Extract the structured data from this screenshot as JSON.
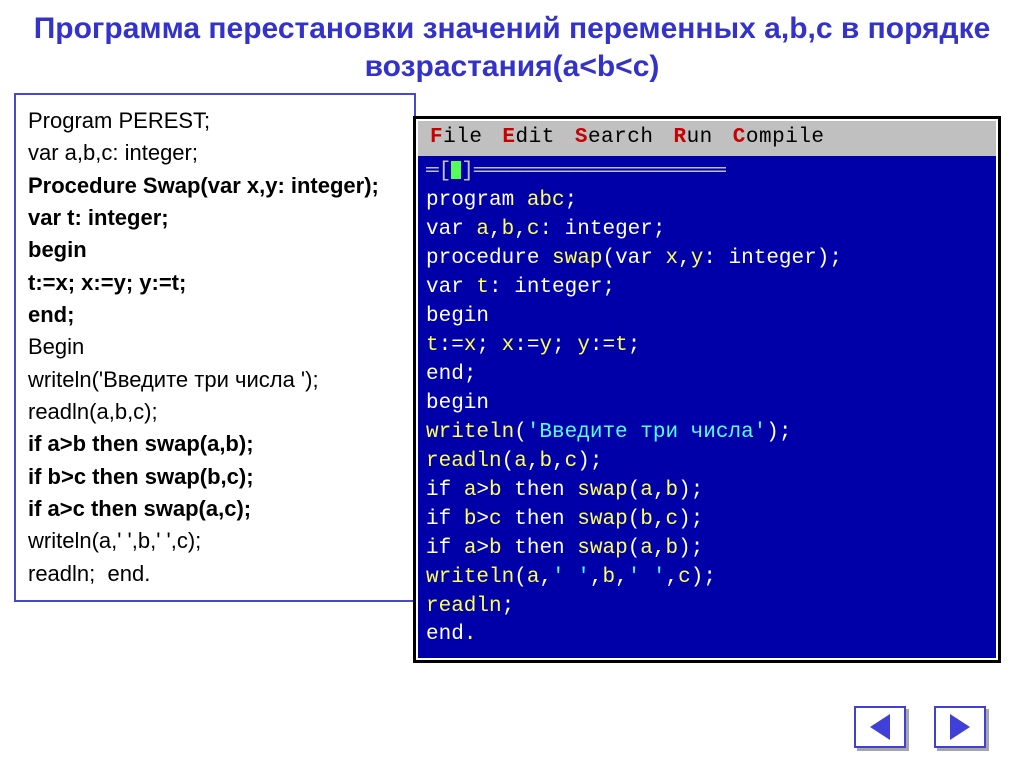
{
  "title": "Программа перестановки значений переменных a,b,c в порядке возрастания(a<b<c)",
  "code_left": [
    {
      "t": "Program PEREST;",
      "b": false
    },
    {
      "t": "var a,b,c: integer;",
      "b": false
    },
    {
      "t": "Procedure Swap(var x,y: integer);",
      "b": true
    },
    {
      "t": "var t: integer;",
      "b": true
    },
    {
      "t": "begin",
      "b": true
    },
    {
      "t": "t:=x; x:=y; y:=t;",
      "b": true
    },
    {
      "t": "end;",
      "b": true
    },
    {
      "t": "Begin",
      "b": false
    },
    {
      "t": "writeln('Введите три числа ');",
      "b": false
    },
    {
      "t": "readln(a,b,c);",
      "b": false
    },
    {
      "t": "if a>b then swap(a,b);",
      "b": true
    },
    {
      "t": "if b>c then swap(b,c);",
      "b": true
    },
    {
      "t": "if a>c then swap(a,c);",
      "b": true
    },
    {
      "t": "writeln(a,' ',b,' ',c);",
      "b": false
    },
    {
      "t": "readln;  end.",
      "b": false
    }
  ],
  "ide": {
    "menu": [
      {
        "hot": "F",
        "rest": "ile"
      },
      {
        "hot": "E",
        "rest": "dit"
      },
      {
        "hot": "S",
        "rest": "earch"
      },
      {
        "hot": "R",
        "rest": "un"
      },
      {
        "hot": "C",
        "rest": "ompile"
      }
    ],
    "lines": [
      [
        {
          "c": "g",
          "t": "═["
        },
        {
          "c": "cursor",
          "t": ""
        },
        {
          "c": "g",
          "t": "]════════════════════"
        }
      ],
      [
        {
          "c": "w",
          "t": "program "
        },
        {
          "c": "y",
          "t": "abc"
        },
        {
          "c": "w",
          "t": ";"
        }
      ],
      [
        {
          "c": "w",
          "t": "var "
        },
        {
          "c": "y",
          "t": "a"
        },
        {
          "c": "w",
          "t": ","
        },
        {
          "c": "y",
          "t": "b"
        },
        {
          "c": "w",
          "t": ","
        },
        {
          "c": "y",
          "t": "c"
        },
        {
          "c": "w",
          "t": ": integer;"
        }
      ],
      [
        {
          "c": "w",
          "t": "procedure "
        },
        {
          "c": "y",
          "t": "swap"
        },
        {
          "c": "w",
          "t": "("
        },
        {
          "c": "w",
          "t": "var "
        },
        {
          "c": "y",
          "t": "x"
        },
        {
          "c": "w",
          "t": ","
        },
        {
          "c": "y",
          "t": "y"
        },
        {
          "c": "w",
          "t": ": integer);"
        }
      ],
      [
        {
          "c": "w",
          "t": "var "
        },
        {
          "c": "y",
          "t": "t"
        },
        {
          "c": "w",
          "t": ": integer;"
        }
      ],
      [
        {
          "c": "w",
          "t": "begin"
        }
      ],
      [
        {
          "c": "y",
          "t": "t"
        },
        {
          "c": "w",
          "t": ":="
        },
        {
          "c": "y",
          "t": "x"
        },
        {
          "c": "w",
          "t": "; "
        },
        {
          "c": "y",
          "t": "x"
        },
        {
          "c": "w",
          "t": ":="
        },
        {
          "c": "y",
          "t": "y"
        },
        {
          "c": "w",
          "t": "; "
        },
        {
          "c": "y",
          "t": "y"
        },
        {
          "c": "w",
          "t": ":="
        },
        {
          "c": "y",
          "t": "t"
        },
        {
          "c": "w",
          "t": ";"
        }
      ],
      [
        {
          "c": "w",
          "t": "end"
        },
        {
          "c": "w",
          "t": ";"
        }
      ],
      [
        {
          "c": "w",
          "t": "begin"
        }
      ],
      [
        {
          "c": "y",
          "t": "writeln"
        },
        {
          "c": "w",
          "t": "("
        },
        {
          "c": "c",
          "t": "'Введите три числа'"
        },
        {
          "c": "w",
          "t": ");"
        }
      ],
      [
        {
          "c": "y",
          "t": "readln"
        },
        {
          "c": "w",
          "t": "("
        },
        {
          "c": "y",
          "t": "a"
        },
        {
          "c": "w",
          "t": ","
        },
        {
          "c": "y",
          "t": "b"
        },
        {
          "c": "w",
          "t": ","
        },
        {
          "c": "y",
          "t": "c"
        },
        {
          "c": "w",
          "t": ");"
        }
      ],
      [
        {
          "c": "w",
          "t": "if "
        },
        {
          "c": "y",
          "t": "a"
        },
        {
          "c": "w",
          "t": ">"
        },
        {
          "c": "y",
          "t": "b"
        },
        {
          "c": "w",
          "t": " then "
        },
        {
          "c": "y",
          "t": "swap"
        },
        {
          "c": "w",
          "t": "("
        },
        {
          "c": "y",
          "t": "a"
        },
        {
          "c": "w",
          "t": ","
        },
        {
          "c": "y",
          "t": "b"
        },
        {
          "c": "w",
          "t": ");"
        }
      ],
      [
        {
          "c": "w",
          "t": "if "
        },
        {
          "c": "y",
          "t": "b"
        },
        {
          "c": "w",
          "t": ">"
        },
        {
          "c": "y",
          "t": "c"
        },
        {
          "c": "w",
          "t": " then "
        },
        {
          "c": "y",
          "t": "swap"
        },
        {
          "c": "w",
          "t": "("
        },
        {
          "c": "y",
          "t": "b"
        },
        {
          "c": "w",
          "t": ","
        },
        {
          "c": "y",
          "t": "c"
        },
        {
          "c": "w",
          "t": ");"
        }
      ],
      [
        {
          "c": "w",
          "t": "if "
        },
        {
          "c": "y",
          "t": "a"
        },
        {
          "c": "w",
          "t": ">"
        },
        {
          "c": "y",
          "t": "b"
        },
        {
          "c": "w",
          "t": " then "
        },
        {
          "c": "y",
          "t": "swap"
        },
        {
          "c": "w",
          "t": "("
        },
        {
          "c": "y",
          "t": "a"
        },
        {
          "c": "w",
          "t": ","
        },
        {
          "c": "y",
          "t": "b"
        },
        {
          "c": "w",
          "t": ");"
        }
      ],
      [
        {
          "c": "y",
          "t": "writeln"
        },
        {
          "c": "w",
          "t": "("
        },
        {
          "c": "y",
          "t": "a"
        },
        {
          "c": "w",
          "t": ","
        },
        {
          "c": "c",
          "t": "' '"
        },
        {
          "c": "w",
          "t": ","
        },
        {
          "c": "y",
          "t": "b"
        },
        {
          "c": "w",
          "t": ","
        },
        {
          "c": "c",
          "t": "' '"
        },
        {
          "c": "w",
          "t": ","
        },
        {
          "c": "y",
          "t": "c"
        },
        {
          "c": "w",
          "t": ");"
        }
      ],
      [
        {
          "c": "y",
          "t": "readln"
        },
        {
          "c": "w",
          "t": ";"
        }
      ],
      [
        {
          "c": "w",
          "t": "end"
        },
        {
          "c": "y",
          "t": "."
        }
      ]
    ]
  },
  "colors": {
    "title": "#3333cc",
    "border": "#4747d1",
    "ide_bg": "#0000a8",
    "ide_yellow": "#ffff55",
    "ide_white": "#ffffff",
    "ide_cyan": "#55ffff",
    "ide_gray": "#c0c0c0",
    "menu_hot": "#c80000",
    "cursor": "#55ff55"
  }
}
